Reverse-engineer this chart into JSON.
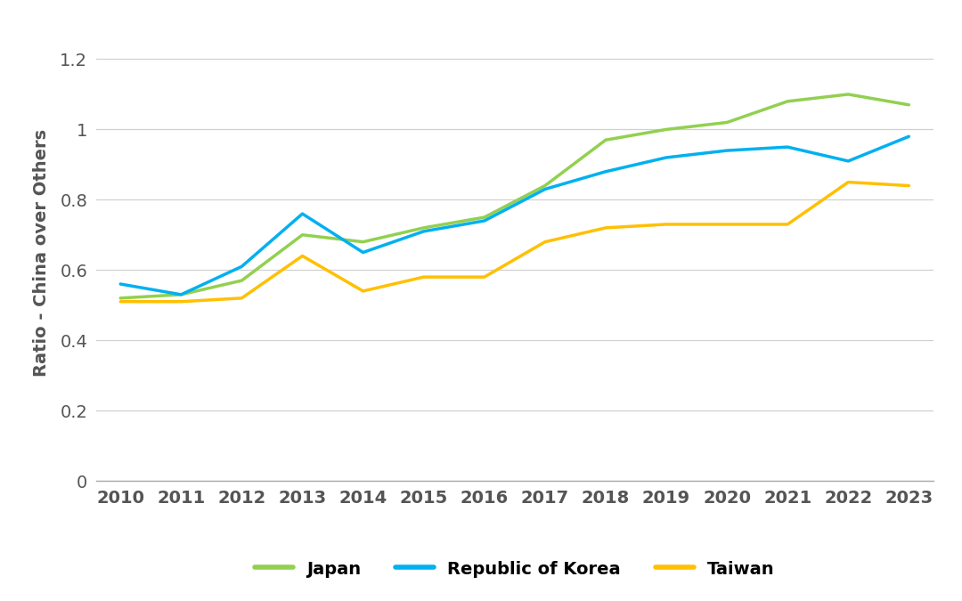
{
  "years": [
    2010,
    2011,
    2012,
    2013,
    2014,
    2015,
    2016,
    2017,
    2018,
    2019,
    2020,
    2021,
    2022,
    2023
  ],
  "japan": [
    0.52,
    0.53,
    0.57,
    0.7,
    0.68,
    0.72,
    0.75,
    0.84,
    0.97,
    1.0,
    1.02,
    1.08,
    1.1,
    1.07
  ],
  "korea": [
    0.56,
    0.53,
    0.61,
    0.76,
    0.65,
    0.71,
    0.74,
    0.83,
    0.88,
    0.92,
    0.94,
    0.95,
    0.91,
    0.98
  ],
  "taiwan": [
    0.51,
    0.51,
    0.52,
    0.64,
    0.54,
    0.58,
    0.58,
    0.68,
    0.72,
    0.73,
    0.73,
    0.73,
    0.85,
    0.84
  ],
  "japan_color": "#92d050",
  "korea_color": "#00b0f0",
  "taiwan_color": "#ffc000",
  "japan_label": "Japan",
  "korea_label": "Republic of Korea",
  "taiwan_label": "Taiwan",
  "ylabel": "Ratio - China over Others",
  "ylim": [
    0,
    1.3
  ],
  "yticks": [
    0,
    0.2,
    0.4,
    0.6,
    0.8,
    1.0,
    1.2
  ],
  "background_color": "#ffffff",
  "grid_color": "#d0d0d0",
  "line_width": 2.5,
  "tick_fontsize": 14,
  "label_fontsize": 14,
  "legend_fontsize": 14
}
